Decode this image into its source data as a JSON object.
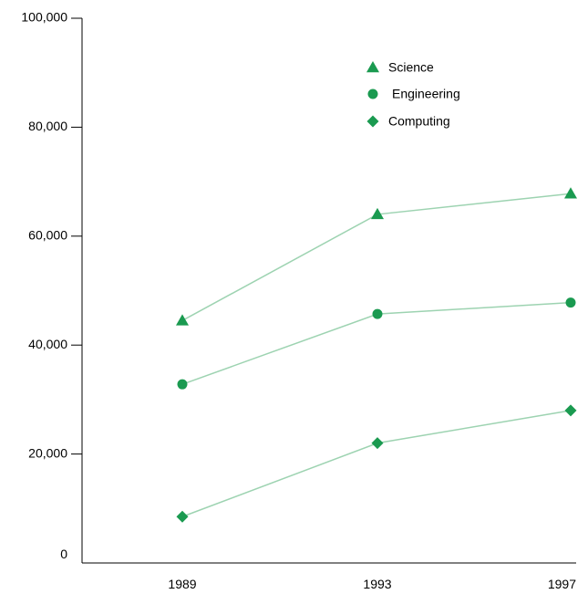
{
  "chart_data": {
    "type": "line",
    "title": "",
    "xlabel": "",
    "ylabel": "",
    "x": [
      "1989",
      "1993",
      "1997"
    ],
    "ylim": [
      0,
      100000
    ],
    "y_ticks": [
      "0",
      "20,000",
      "40,000",
      "60,000",
      "80,000",
      "100,000"
    ],
    "grid": false,
    "legend_position": "top-right",
    "marker_color": "#1a9a50",
    "line_color": "#9dd3b1",
    "series": [
      {
        "name": "Science",
        "marker": "triangle",
        "values": [
          44500,
          64000,
          67800
        ]
      },
      {
        "name": "Engineering",
        "marker": "circle",
        "values": [
          32800,
          45700,
          47800
        ]
      },
      {
        "name": "Computing",
        "marker": "diamond",
        "values": [
          8500,
          22000,
          28000
        ]
      }
    ]
  }
}
